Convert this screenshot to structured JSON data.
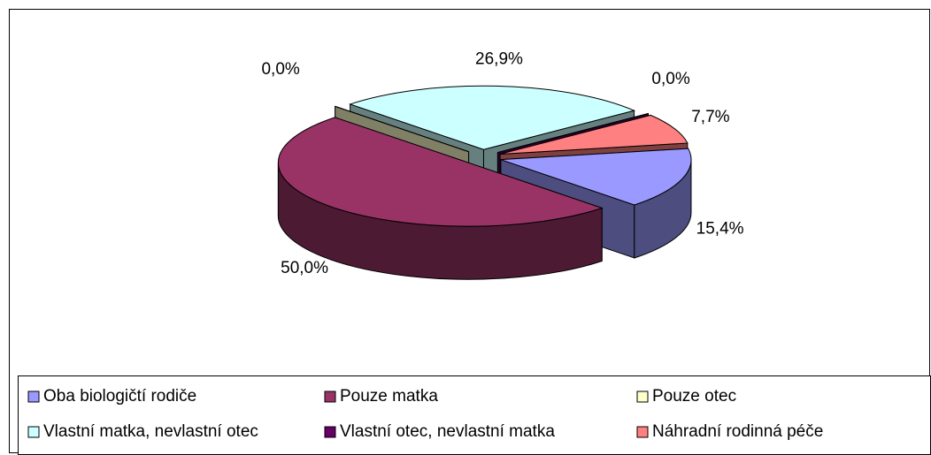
{
  "chart_data": {
    "type": "pie3d",
    "categories": [
      "Oba biologičtí rodiče",
      "Pouze matka",
      "Pouze otec",
      "Vlastní matka, nevlastní otec",
      "Vlastní otec, nevlastní matka",
      "Náhradní rodinná péče"
    ],
    "values": [
      15.4,
      50.0,
      0.0,
      26.9,
      0.0,
      7.7
    ],
    "value_labels": [
      "15,4%",
      "50,0%",
      "0,0%",
      "26,9%",
      "0,0%",
      "7,7%"
    ],
    "colors": [
      "#9999ff",
      "#993366",
      "#ffffcc",
      "#ccffff",
      "#660066",
      "#ff8080"
    ],
    "legend": "bottom"
  }
}
